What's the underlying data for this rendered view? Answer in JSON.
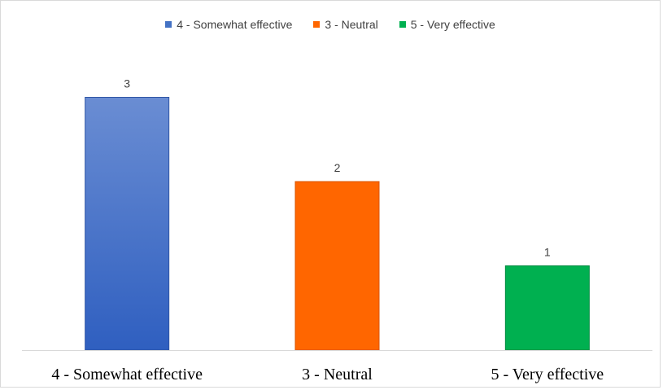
{
  "chart_data": {
    "type": "bar",
    "categories": [
      "4 - Somewhat effective",
      "3 - Neutral",
      "5 - Very effective"
    ],
    "values": [
      3,
      2,
      1
    ],
    "colors": [
      "#4472c4",
      "#ff6600",
      "#00b050"
    ],
    "title": "",
    "xlabel": "",
    "ylabel": "",
    "ylim": [
      0,
      3.2
    ],
    "grid": false,
    "legend": {
      "position": "top-center",
      "entries": [
        "4 - Somewhat effective",
        "3 - Neutral",
        "5 - Very effective"
      ]
    }
  }
}
